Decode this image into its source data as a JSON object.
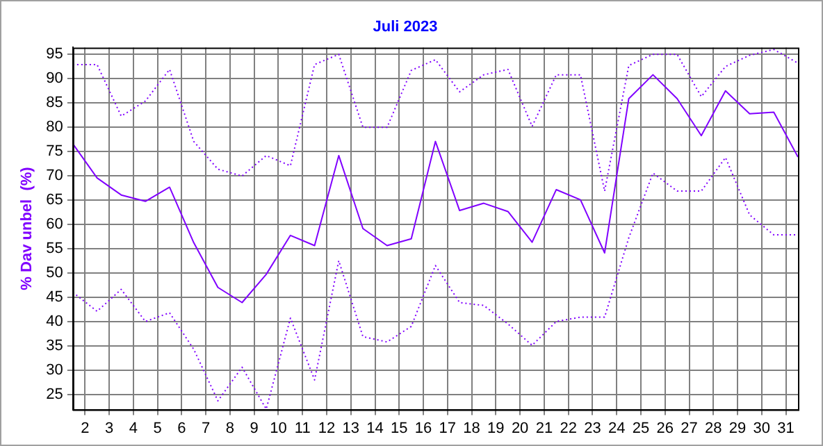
{
  "chart_data": {
    "type": "line",
    "title": "Juli 2023",
    "ylabel": "% Dav unbel  (%)",
    "x": [
      1.5,
      2.5,
      3.5,
      4.5,
      5.5,
      6.5,
      7.5,
      8.5,
      9.5,
      10.5,
      11.5,
      12.5,
      13.5,
      14.5,
      15.5,
      16.5,
      17.5,
      18.5,
      19.5,
      20.5,
      21.5,
      22.5,
      23.5,
      24.5,
      25.5,
      26.5,
      27.5,
      28.5,
      29.5,
      30.5,
      31.5
    ],
    "xlim": [
      1.5,
      31.5
    ],
    "xticks": [
      2,
      3,
      4,
      5,
      6,
      7,
      8,
      9,
      10,
      11,
      12,
      13,
      14,
      15,
      16,
      17,
      18,
      19,
      20,
      21,
      22,
      23,
      24,
      25,
      26,
      27,
      28,
      29,
      30,
      31
    ],
    "ylim": [
      21.9,
      96.3
    ],
    "yticks": [
      25,
      30,
      35,
      40,
      45,
      50,
      55,
      60,
      65,
      70,
      75,
      80,
      85,
      90,
      95
    ],
    "grid": true,
    "legend": false,
    "marker": "none",
    "series": [
      {
        "color": "#8000ff",
        "line_style": "solid",
        "values": [
          76.5,
          69.5,
          66.0,
          64.7,
          67.6,
          56.2,
          47.0,
          43.9,
          49.7,
          57.7,
          55.6,
          74.1,
          59.1,
          55.6,
          57.0,
          77.0,
          62.8,
          64.3,
          62.6,
          56.3,
          67.1,
          65.0,
          54.1,
          85.8,
          90.7,
          85.8,
          78.2,
          87.4,
          82.7,
          83.0,
          73.8
        ]
      },
      {
        "color": "#8000ff",
        "line_style": "dotted",
        "values": [
          92.8,
          92.8,
          82.2,
          85.3,
          91.8,
          77.0,
          71.3,
          69.9,
          74.1,
          72.0,
          92.8,
          94.9,
          79.9,
          79.9,
          91.6,
          93.8,
          87.2,
          90.7,
          91.8,
          80.1,
          90.7,
          90.7,
          66.8,
          92.6,
          94.9,
          94.9,
          86.2,
          92.4,
          94.7,
          95.9,
          93.1
        ]
      },
      {
        "color": "#8000ff",
        "line_style": "dotted",
        "values": [
          46.0,
          42.1,
          46.6,
          40.0,
          41.8,
          34.3,
          23.7,
          30.6,
          22.0,
          40.7,
          28.0,
          52.5,
          36.9,
          35.8,
          39.0,
          51.5,
          43.9,
          43.3,
          39.5,
          35.1,
          40.0,
          40.9,
          40.9,
          57.2,
          70.5,
          66.8,
          66.8,
          73.7,
          61.9,
          57.8,
          57.8
        ]
      }
    ]
  }
}
